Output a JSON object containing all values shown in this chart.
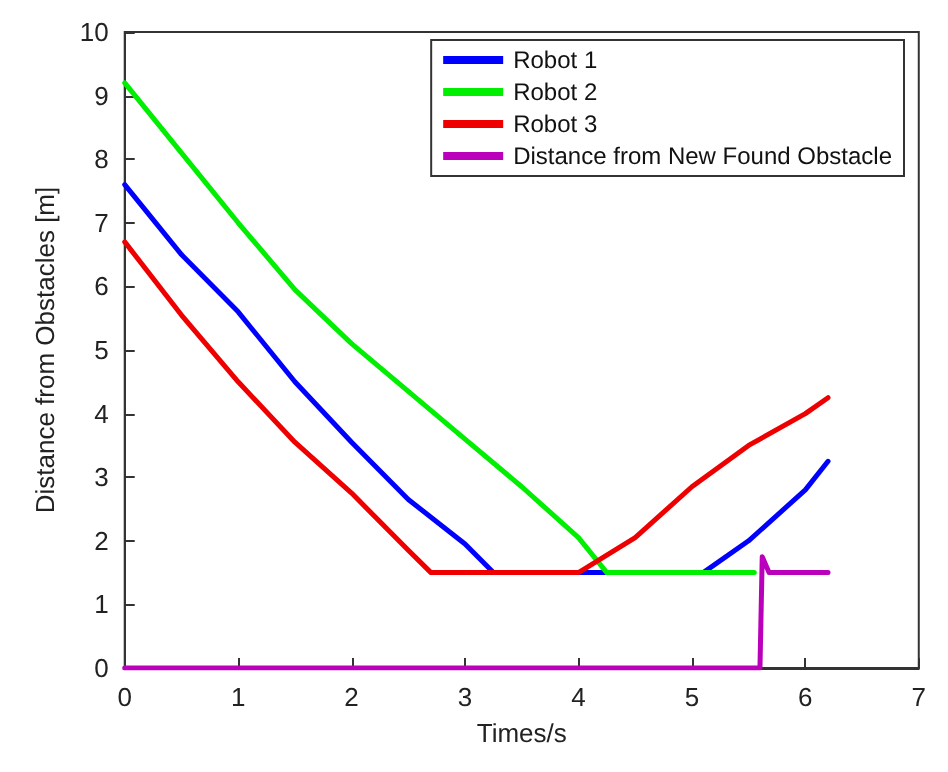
{
  "chart_data": {
    "type": "line",
    "xlabel": "Times/s",
    "ylabel": "Distance from Obstacles [m]",
    "xlim": [
      0,
      7
    ],
    "ylim": [
      0,
      10
    ],
    "xticks": [
      0,
      1,
      2,
      3,
      4,
      5,
      6,
      7
    ],
    "yticks": [
      0,
      1,
      2,
      3,
      4,
      5,
      6,
      7,
      8,
      9,
      10
    ],
    "grid": false,
    "legend": "top right",
    "marker": "none",
    "line_style": "solid",
    "series": [
      {
        "name": "Robot 1",
        "color": "#0000ff",
        "x": [
          0,
          0.5,
          1,
          1.5,
          2,
          2.5,
          3,
          3.25,
          4,
          5.1,
          5.5,
          6,
          6.2
        ],
        "values": [
          7.6,
          6.5,
          5.6,
          4.5,
          3.55,
          2.65,
          1.95,
          1.5,
          1.5,
          1.5,
          2.0,
          2.8,
          3.25
        ]
      },
      {
        "name": "Robot 2",
        "color": "#00ee00",
        "x": [
          0,
          0.5,
          1,
          1.5,
          2,
          2.5,
          3,
          3.5,
          4,
          4.25,
          5,
          5.55
        ],
        "values": [
          9.2,
          8.1,
          7.0,
          5.95,
          5.1,
          4.35,
          3.6,
          2.85,
          2.05,
          1.5,
          1.5,
          1.5
        ]
      },
      {
        "name": "Robot 3",
        "color": "#ee0000",
        "x": [
          0,
          0.5,
          1,
          1.5,
          2,
          2.5,
          2.7,
          3.5,
          4,
          4.5,
          5,
          5.5,
          6,
          6.2
        ],
        "values": [
          6.7,
          5.55,
          4.5,
          3.55,
          2.75,
          1.85,
          1.5,
          1.5,
          1.5,
          2.05,
          2.85,
          3.5,
          4.0,
          4.25
        ]
      },
      {
        "name": "Distance from New Found Obstacle",
        "color": "#bb00bb",
        "x": [
          0,
          5.6,
          5.62,
          5.68,
          6.2
        ],
        "values": [
          0,
          0,
          1.75,
          1.5,
          1.5
        ]
      }
    ]
  }
}
